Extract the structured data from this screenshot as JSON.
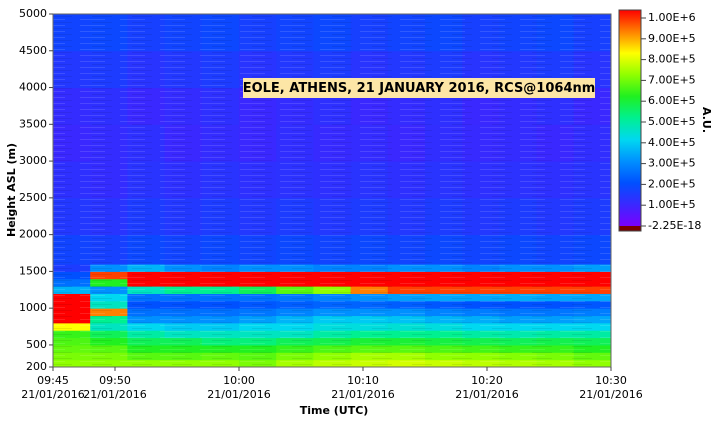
{
  "chart_data": {
    "type": "heatmap",
    "title": "EOLE, ATHENS, 21 JANUARY 2016, RCS@1064nm",
    "xlabel": "Time (UTC)",
    "ylabel": "Height ASL (m)",
    "colorbar_label": "A.U.",
    "xlim": [
      "09:45",
      "10:30"
    ],
    "xticks": [
      "09:45",
      "09:50",
      "10:00",
      "10:10",
      "10:20",
      "10:30"
    ],
    "xtick_dates": [
      "21/01/2016",
      "21/01/2016",
      "21/01/2016",
      "21/01/2016",
      "21/01/2016",
      "21/01/2016"
    ],
    "ylim": [
      200,
      5000
    ],
    "yticks": [
      200,
      500,
      1000,
      1500,
      2000,
      2500,
      3000,
      3500,
      4000,
      4500,
      5000
    ],
    "clim": [
      -2.25e-18,
      1000000
    ],
    "cticks": [
      {
        "value": 1000000,
        "label": "1.00E+6"
      },
      {
        "value": 900000,
        "label": "9.00E+5"
      },
      {
        "value": 800000,
        "label": "8.00E+5"
      },
      {
        "value": 700000,
        "label": "7.00E+5"
      },
      {
        "value": 600000,
        "label": "6.00E+5"
      },
      {
        "value": 500000,
        "label": "5.00E+5"
      },
      {
        "value": 400000,
        "label": "4.00E+5"
      },
      {
        "value": 300000,
        "label": "3.00E+5"
      },
      {
        "value": 200000,
        "label": "2.00E+5"
      },
      {
        "value": 100000,
        "label": "1.00E+5"
      },
      {
        "value": -2.25e-18,
        "label": "-2.25E-18"
      }
    ],
    "colormap": [
      "#7a00ff",
      "#3a28ff",
      "#0050ff",
      "#0090ff",
      "#00d8f0",
      "#00f090",
      "#20f020",
      "#90ff00",
      "#ffff00",
      "#ff8000",
      "#ff0000"
    ],
    "x_bins": [
      "09:45",
      "09:48",
      "09:51",
      "09:54",
      "09:57",
      "10:00",
      "10:03",
      "10:06",
      "10:09",
      "10:12",
      "10:15",
      "10:18",
      "10:21",
      "10:24",
      "10:27",
      "10:30"
    ],
    "y_bins": [
      200,
      300,
      400,
      500,
      600,
      700,
      800,
      900,
      1000,
      1100,
      1200,
      1300,
      1400,
      1500,
      1600,
      2000,
      2500,
      3000,
      3500,
      4000,
      4500,
      5000
    ],
    "values": [
      [
        700000,
        700000,
        700000,
        700000,
        700000,
        680000,
        720000,
        740000,
        750000,
        760000,
        750000,
        740000,
        730000,
        720000,
        700000
      ],
      [
        680000,
        680000,
        650000,
        650000,
        660000,
        650000,
        680000,
        700000,
        720000,
        720000,
        700000,
        700000,
        690000,
        680000,
        660000
      ],
      [
        660000,
        650000,
        600000,
        600000,
        600000,
        600000,
        620000,
        640000,
        650000,
        650000,
        640000,
        630000,
        620000,
        620000,
        600000
      ],
      [
        640000,
        600000,
        550000,
        550000,
        520000,
        520000,
        550000,
        560000,
        580000,
        580000,
        570000,
        560000,
        550000,
        560000,
        550000
      ],
      [
        620000,
        550000,
        480000,
        450000,
        450000,
        450000,
        450000,
        480000,
        500000,
        500000,
        500000,
        480000,
        470000,
        480000,
        480000
      ],
      [
        800000,
        450000,
        400000,
        380000,
        380000,
        400000,
        400000,
        420000,
        420000,
        430000,
        420000,
        400000,
        400000,
        400000,
        400000
      ],
      [
        1000000,
        500000,
        300000,
        300000,
        300000,
        320000,
        350000,
        380000,
        380000,
        370000,
        350000,
        340000,
        320000,
        320000,
        330000
      ],
      [
        1000000,
        900000,
        250000,
        250000,
        250000,
        260000,
        280000,
        300000,
        300000,
        300000,
        280000,
        270000,
        260000,
        260000,
        270000
      ],
      [
        1000000,
        450000,
        200000,
        200000,
        200000,
        210000,
        220000,
        230000,
        230000,
        220000,
        210000,
        200000,
        200000,
        200000,
        210000
      ],
      [
        1000000,
        400000,
        250000,
        250000,
        250000,
        250000,
        260000,
        280000,
        300000,
        320000,
        330000,
        330000,
        340000,
        330000,
        330000
      ],
      [
        350000,
        300000,
        450000,
        500000,
        500000,
        550000,
        650000,
        700000,
        900000,
        950000,
        950000,
        950000,
        950000,
        950000,
        950000
      ],
      [
        250000,
        600000,
        1000000,
        1000000,
        1000000,
        1000000,
        1000000,
        1000000,
        1000000,
        1000000,
        1000000,
        1000000,
        1000000,
        1000000,
        1000000
      ],
      [
        200000,
        950000,
        1000000,
        1000000,
        1000000,
        1000000,
        1000000,
        1000000,
        1000000,
        1000000,
        1000000,
        1000000,
        1000000,
        1000000,
        1000000
      ],
      [
        150000,
        300000,
        350000,
        300000,
        280000,
        300000,
        300000,
        280000,
        280000,
        300000,
        300000,
        280000,
        300000,
        300000,
        320000
      ],
      [
        170000,
        160000,
        180000,
        170000,
        180000,
        170000,
        180000,
        170000,
        180000,
        170000,
        180000,
        170000,
        180000,
        170000,
        180000
      ],
      [
        140000,
        130000,
        150000,
        140000,
        150000,
        140000,
        150000,
        140000,
        150000,
        140000,
        150000,
        140000,
        150000,
        140000,
        150000
      ],
      [
        120000,
        110000,
        130000,
        120000,
        130000,
        120000,
        125000,
        120000,
        130000,
        120000,
        130000,
        120000,
        125000,
        120000,
        130000
      ],
      [
        100000,
        110000,
        120000,
        100000,
        110000,
        100000,
        115000,
        105000,
        110000,
        100000,
        115000,
        105000,
        110000,
        100000,
        115000
      ],
      [
        110000,
        120000,
        100000,
        110000,
        120000,
        100000,
        110000,
        120000,
        100000,
        110000,
        120000,
        100000,
        110000,
        120000,
        100000
      ],
      [
        140000,
        150000,
        130000,
        140000,
        150000,
        130000,
        140000,
        150000,
        130000,
        140000,
        150000,
        130000,
        140000,
        150000,
        130000
      ],
      [
        170000,
        180000,
        160000,
        170000,
        180000,
        160000,
        170000,
        180000,
        160000,
        170000,
        180000,
        160000,
        170000,
        180000,
        160000
      ]
    ]
  }
}
